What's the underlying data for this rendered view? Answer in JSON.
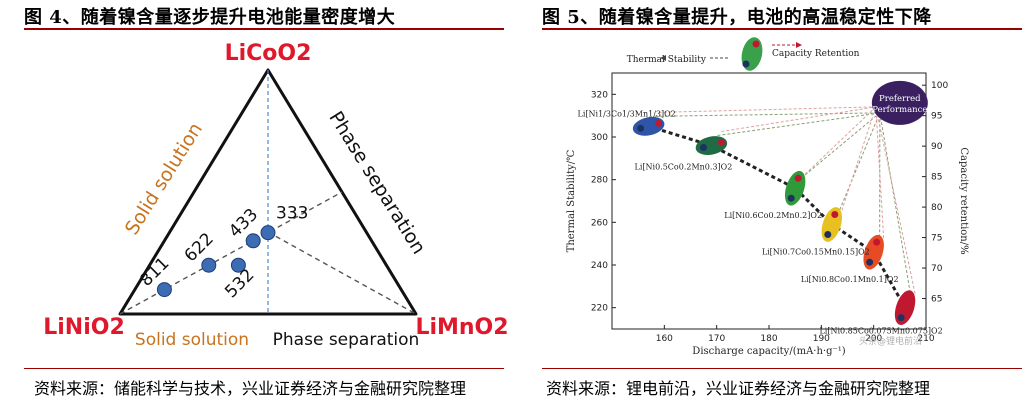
{
  "figures": [
    {
      "title": "图 4、随着镍含量逐步提升电池能量密度增大",
      "source": "资料来源：储能科学与技术，兴业证券经济与金融研究院整理"
    },
    {
      "title": "图 5、随着镍含量提升，电池的高温稳定性下降",
      "source": "资料来源：锂电前沿，兴业证券经济与金融研究院整理"
    }
  ],
  "colors": {
    "accent": "#9a0000",
    "vertex": "#e0182c",
    "edge_label": "#c8731e",
    "point": "#3c6cb4"
  },
  "chart_data": [
    {
      "type": "scatter",
      "title": "",
      "vertices": {
        "top": "LiCoO2",
        "left": "LiNiO2",
        "right": "LiMnO2"
      },
      "edge_labels": {
        "left": "Solid solution",
        "bottom_left": "Solid solution",
        "right": "Phase separation",
        "bottom_right": "Phase separation"
      },
      "points": [
        {
          "label": "811",
          "a": 0.8,
          "b": 0.1,
          "c": 0.1
        },
        {
          "label": "622",
          "a": 0.6,
          "b": 0.2,
          "c": 0.2
        },
        {
          "label": "433",
          "a": 0.4,
          "b": 0.3,
          "c": 0.3
        },
        {
          "label": "333",
          "a": 0.333,
          "b": 0.333,
          "c": 0.333
        },
        {
          "label": "532",
          "a": 0.5,
          "b": 0.2,
          "c": 0.3
        }
      ]
    },
    {
      "type": "scatter",
      "title": "",
      "xlabel": "Discharge capacity/(mA·h·g⁻¹)",
      "ylabel": "Thermal Stability/℃",
      "ylabel_right": "Capacity retention/%",
      "xlim": [
        150,
        210
      ],
      "ylim": [
        210,
        330
      ],
      "ylim_right": [
        60,
        102
      ],
      "xticks": [
        160,
        170,
        180,
        190,
        200,
        210
      ],
      "yticks": [
        220,
        240,
        260,
        280,
        300,
        320
      ],
      "yticks_right": [
        65,
        70,
        75,
        80,
        85,
        90,
        95,
        100
      ],
      "legend": {
        "thermal": "Thermal Stability",
        "capacity": "Capacity Retention"
      },
      "preferred": {
        "label_line1": "Preferred",
        "label_line2": "Performance",
        "x": 205,
        "y": 316
      },
      "series": [
        {
          "label": "Li[Ni1/3Co1/3Mn1/3]O2",
          "x": 157,
          "y": 305,
          "color": "#2f55a8"
        },
        {
          "label": "Li[Ni0.5Co0.2Mn0.3]O2",
          "x": 169,
          "y": 296,
          "color": "#1f6b45"
        },
        {
          "label": "Li[Ni0.6Co0.2Mn0.2]O2",
          "x": 185,
          "y": 276,
          "color": "#2f9a3a"
        },
        {
          "label": "Li[Ni0.7Co0.15Mn0.15]O2",
          "x": 192,
          "y": 259,
          "color": "#e8c020"
        },
        {
          "label": "Li[Ni0.8Co0.1Mn0.1]O2",
          "x": 200,
          "y": 246,
          "color": "#e84a24"
        },
        {
          "label": "Li[Ni0.85Co0.075Mn0.075]O2",
          "x": 206,
          "y": 220,
          "color": "#c01830"
        }
      ],
      "watermark": "头条@锂电前沿"
    }
  ]
}
